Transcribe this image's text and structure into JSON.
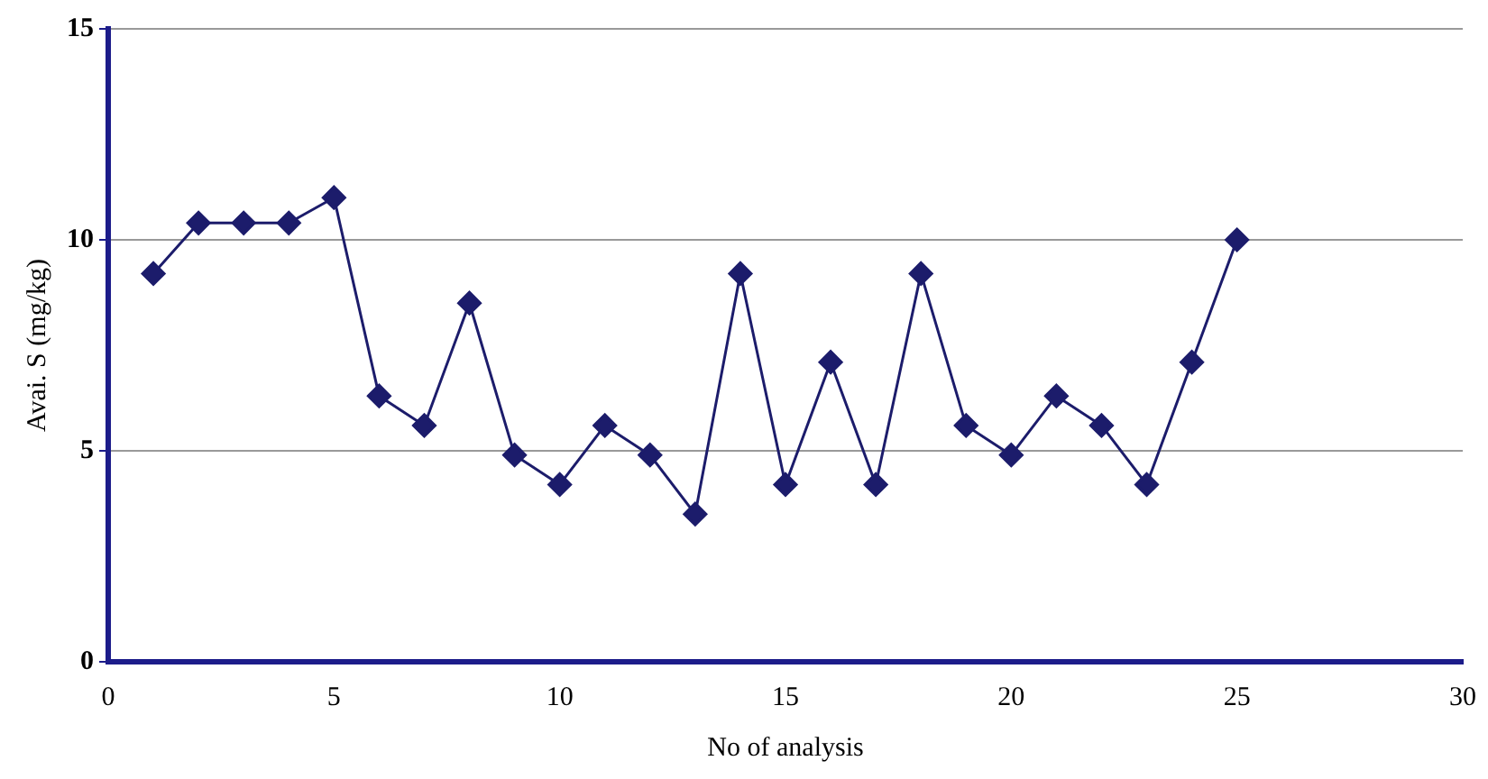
{
  "chart_data": {
    "type": "line",
    "xlabel": "No of analysis",
    "ylabel": "Avai. S (mg/kg)",
    "x": [
      1,
      2,
      3,
      4,
      5,
      6,
      7,
      8,
      9,
      10,
      11,
      12,
      13,
      14,
      15,
      16,
      17,
      18,
      19,
      20,
      21,
      22,
      23,
      24,
      25
    ],
    "series": [
      {
        "color": "#1c1c6b",
        "values": [
          9.2,
          10.4,
          10.4,
          10.4,
          11.0,
          6.3,
          5.6,
          8.5,
          4.9,
          4.2,
          5.6,
          4.9,
          3.5,
          9.2,
          4.2,
          7.1,
          4.2,
          9.2,
          5.6,
          4.9,
          6.3,
          5.6,
          4.2,
          7.1,
          10.0
        ]
      }
    ],
    "xlim": [
      0,
      30
    ],
    "xticks": [
      0,
      5,
      10,
      15,
      20,
      25,
      30
    ],
    "ylim": [
      0,
      15
    ],
    "yticks": [
      0,
      5,
      10,
      15
    ],
    "grid": "y",
    "legend": false,
    "marker": "diamond",
    "line_style": "solid"
  }
}
